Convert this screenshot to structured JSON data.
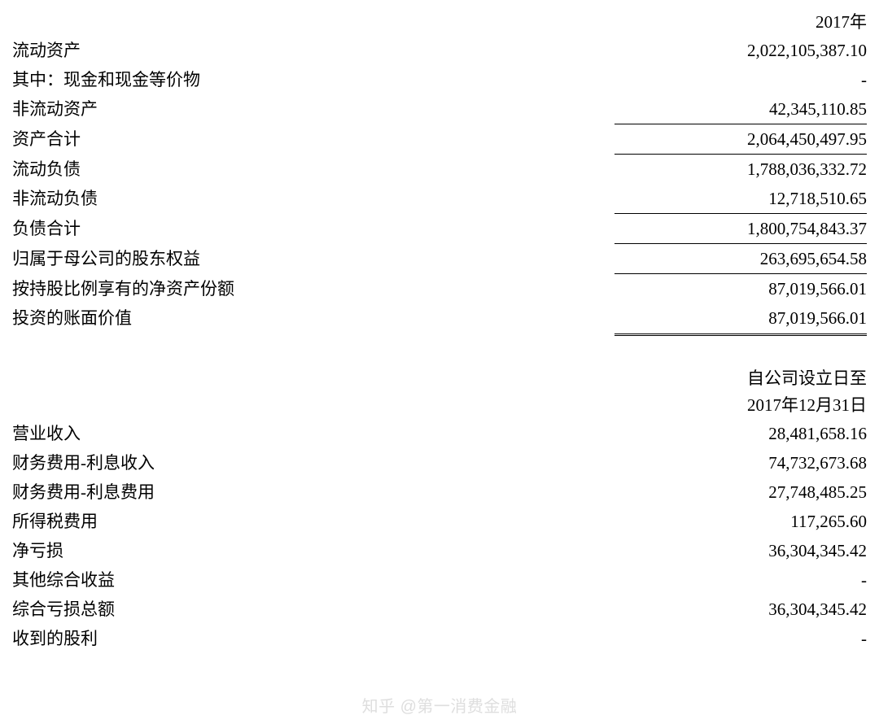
{
  "section1": {
    "header": "2017年",
    "rows": [
      {
        "label": "流动资产",
        "value": "2,022,105,387.10",
        "style": ""
      },
      {
        "label": "其中：现金和现金等价物",
        "value": "-",
        "style": ""
      },
      {
        "label": "非流动资产",
        "value": "42,345,110.85",
        "style": "border-bottom"
      },
      {
        "label": "资产合计",
        "value": "2,064,450,497.95",
        "style": "border-bottom"
      },
      {
        "label": "流动负债",
        "value": "1,788,036,332.72",
        "style": ""
      },
      {
        "label": "非流动负债",
        "value": "12,718,510.65",
        "style": "border-bottom"
      },
      {
        "label": "负债合计",
        "value": "1,800,754,843.37",
        "style": "border-bottom"
      },
      {
        "label": "归属于母公司的股东权益",
        "value": "263,695,654.58",
        "style": "border-bottom"
      },
      {
        "label": "按持股比例享有的净资产份额",
        "value": "87,019,566.01",
        "style": ""
      },
      {
        "label": "投资的账面价值",
        "value": "87,019,566.01",
        "style": "double-bottom"
      }
    ]
  },
  "section2": {
    "header_line1": "自公司设立日至",
    "header_line2": "2017年12月31日",
    "rows": [
      {
        "label": "营业收入",
        "value": "28,481,658.16"
      },
      {
        "label": "财务费用-利息收入",
        "value": "74,732,673.68"
      },
      {
        "label": "财务费用-利息费用",
        "value": "27,748,485.25"
      },
      {
        "label": "所得税费用",
        "value": "117,265.60"
      },
      {
        "label": "净亏损",
        "value": "36,304,345.42"
      },
      {
        "label": "其他综合收益",
        "value": "-"
      },
      {
        "label": "综合亏损总额",
        "value": "36,304,345.42"
      },
      {
        "label": "收到的股利",
        "value": "-"
      }
    ]
  },
  "watermark": "知乎 @第一消费金融"
}
